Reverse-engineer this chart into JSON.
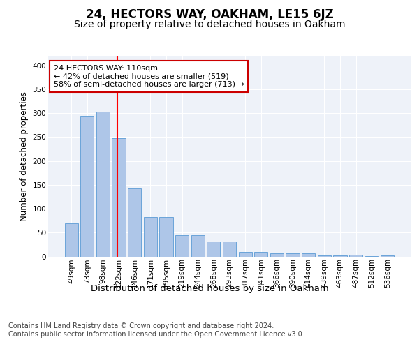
{
  "title": "24, HECTORS WAY, OAKHAM, LE15 6JZ",
  "subtitle": "Size of property relative to detached houses in Oakham",
  "xlabel": "Distribution of detached houses by size in Oakham",
  "ylabel": "Number of detached properties",
  "categories": [
    "49sqm",
    "73sqm",
    "98sqm",
    "122sqm",
    "146sqm",
    "171sqm",
    "195sqm",
    "219sqm",
    "244sqm",
    "268sqm",
    "293sqm",
    "317sqm",
    "341sqm",
    "366sqm",
    "390sqm",
    "414sqm",
    "439sqm",
    "463sqm",
    "487sqm",
    "512sqm",
    "536sqm"
  ],
  "values": [
    70,
    295,
    303,
    248,
    143,
    82,
    82,
    45,
    45,
    32,
    32,
    9,
    9,
    6,
    6,
    6,
    2,
    2,
    4,
    1,
    2
  ],
  "bar_color": "#aec6e8",
  "bar_edgecolor": "#5b9bd5",
  "redline_index": 2.925,
  "annotation_text": "24 HECTORS WAY: 110sqm\n← 42% of detached houses are smaller (519)\n58% of semi-detached houses are larger (713) →",
  "annotation_box_color": "#ffffff",
  "annotation_box_edgecolor": "#cc0000",
  "footer": "Contains HM Land Registry data © Crown copyright and database right 2024.\nContains public sector information licensed under the Open Government Licence v3.0.",
  "ylim": [
    0,
    420
  ],
  "background_color": "#eef2f9",
  "grid_color": "#ffffff",
  "title_fontsize": 12,
  "subtitle_fontsize": 10,
  "xlabel_fontsize": 9.5,
  "ylabel_fontsize": 8.5,
  "tick_fontsize": 7.5,
  "annotation_fontsize": 8,
  "footer_fontsize": 7
}
